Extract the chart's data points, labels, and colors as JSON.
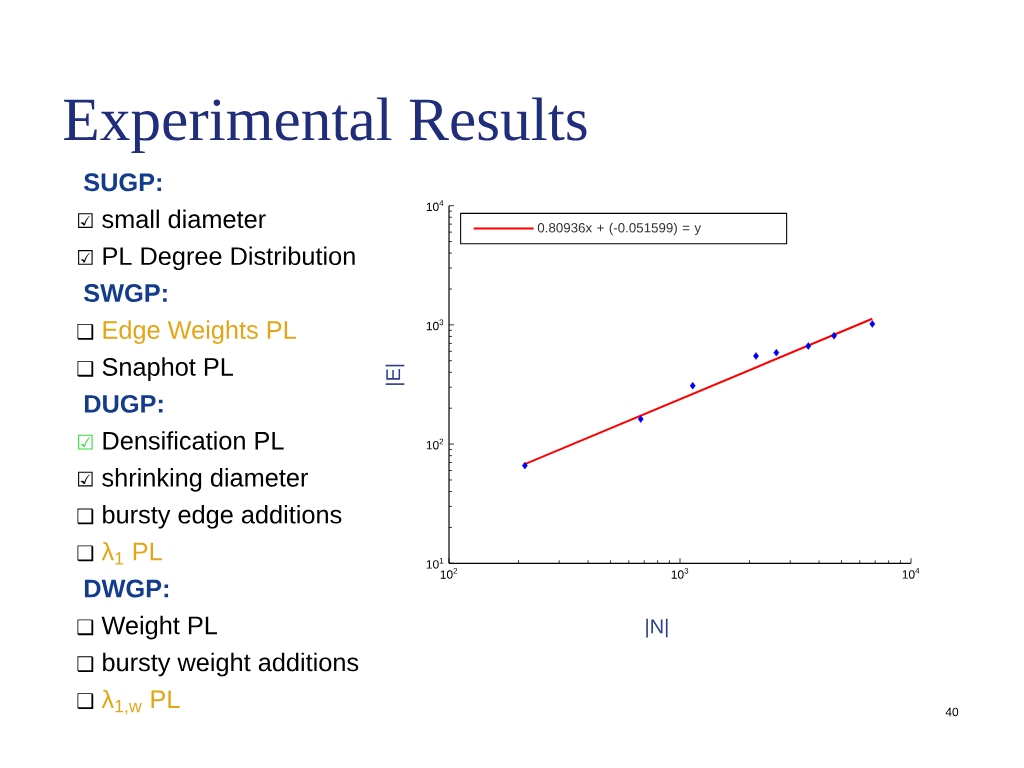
{
  "chart_data": {
    "type": "scatter",
    "title": "Experimental Results",
    "xlabel": "|N|",
    "ylabel": "|E|",
    "log": "xy",
    "xlim": [
      100,
      10000
    ],
    "ylim": [
      10,
      10000
    ],
    "xticks": [
      {
        "value": 100,
        "label": "10$^{2}$"
      },
      {
        "value": 1000,
        "label": "10$^{3}$"
      },
      {
        "value": 10000,
        "label": "10$^{4}$"
      }
    ],
    "yticks": [
      {
        "value": 10,
        "label": "10$^{1}$"
      },
      {
        "value": 100,
        "label": "10$^{2}$"
      },
      {
        "value": 1000,
        "label": "10$^{3}$"
      },
      {
        "value": 10000,
        "label": "10$^{4}$"
      }
    ],
    "series": [
      {
        "color": "#0000ee",
        "marker": "diamond",
        "x": [
          213,
          676,
          1135,
          2133,
          2612,
          3593,
          4642,
          6803
        ],
        "values": [
          66,
          162,
          309,
          548,
          585,
          665,
          811,
          1019
        ]
      },
      {
        "type": "line",
        "name": "0.80936x + (-0.051599) = y",
        "color": "#ff0000",
        "marker": "none",
        "line_style": "solid",
        "x": [
          213,
          6800
        ],
        "values": [
          68,
          1125
        ]
      }
    ],
    "legend": "top left",
    "annotations": [
      "SUGP:",
      "☑ small diameter",
      "☑ PL Degree Distribution",
      "SWGP:",
      "❑ Edge Weights PL",
      "❑ Snaphot PL",
      "DUGP:",
      "☑ Densification PL",
      "☑ shrinking diameter",
      "❑ bursty edge additions",
      "❑ λ$_{1}$ PL",
      "DWGP:",
      "❑ Weight PL",
      "❑ bursty weight additions",
      "❑ λ$_{1,w}$ PL",
      "40"
    ]
  }
}
